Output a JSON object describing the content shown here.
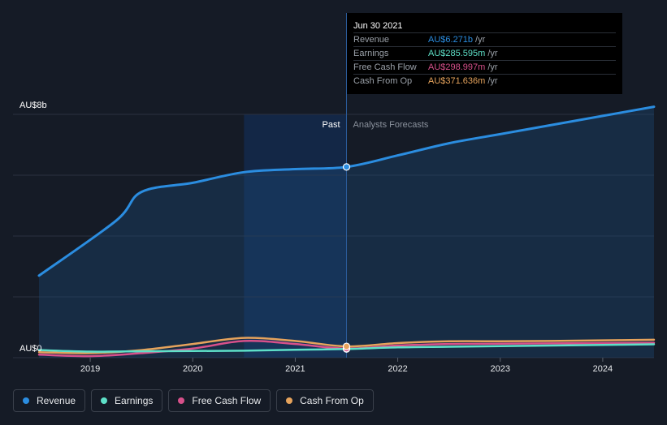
{
  "chart_data": {
    "type": "line",
    "y_axis_labels": [
      "AU$8b",
      "AU$0"
    ],
    "ylim": [
      0,
      8000
    ],
    "xlim": [
      2018.5,
      2024.5
    ],
    "x_ticks": [
      2019,
      2020,
      2021,
      2022,
      2023,
      2024
    ],
    "x_tick_labels": [
      "2019",
      "2020",
      "2021",
      "2022",
      "2023",
      "2024"
    ],
    "past_label": "Past",
    "forecast_label": "Analysts Forecasts",
    "divider_x": 2021.5,
    "shade_start_x": 2020.5,
    "grid": true,
    "series": [
      {
        "name": "Revenue",
        "color": "#2b8de0",
        "x": [
          2018.5,
          2019.25,
          2019.5,
          2020.0,
          2020.5,
          2021.0,
          2021.5,
          2022.0,
          2022.5,
          2023.0,
          2023.5,
          2024.0,
          2024.5
        ],
        "y": [
          2700,
          4500,
          5450,
          5750,
          6100,
          6200,
          6271,
          6650,
          7050,
          7350,
          7650,
          7950,
          8250
        ]
      },
      {
        "name": "Earnings",
        "color": "#5ee0c8",
        "x": [
          2018.5,
          2019.0,
          2019.5,
          2020.0,
          2020.5,
          2021.0,
          2021.5,
          2022.0,
          2022.5,
          2023.0,
          2023.5,
          2024.0,
          2024.5
        ],
        "y": [
          250,
          200,
          210,
          220,
          230,
          260,
          285.595,
          340,
          360,
          380,
          400,
          420,
          440
        ]
      },
      {
        "name": "Free Cash Flow",
        "color": "#d7508a",
        "x": [
          2018.5,
          2019.0,
          2019.5,
          2020.0,
          2020.5,
          2021.0,
          2021.5,
          2022.0,
          2022.5,
          2023.0,
          2023.5,
          2024.0,
          2024.5
        ],
        "y": [
          100,
          50,
          150,
          300,
          550,
          450,
          298.997,
          400,
          450,
          460,
          470,
          480,
          490
        ]
      },
      {
        "name": "Cash From Op",
        "color": "#e6a35c",
        "x": [
          2018.5,
          2019.0,
          2019.5,
          2020.0,
          2020.5,
          2021.0,
          2021.5,
          2022.0,
          2022.5,
          2023.0,
          2023.5,
          2024.0,
          2024.5
        ],
        "y": [
          180,
          150,
          250,
          450,
          650,
          550,
          371.636,
          480,
          540,
          540,
          550,
          570,
          590
        ]
      }
    ]
  },
  "tooltip": {
    "date": "Jun 30 2021",
    "unit": "/yr",
    "rows": [
      {
        "label": "Revenue",
        "value": "AU$6.271b",
        "color": "#2b8de0"
      },
      {
        "label": "Earnings",
        "value": "AU$285.595m",
        "color": "#5ee0c8"
      },
      {
        "label": "Free Cash Flow",
        "value": "AU$298.997m",
        "color": "#d7508a"
      },
      {
        "label": "Cash From Op",
        "value": "AU$371.636m",
        "color": "#e6a35c"
      }
    ]
  },
  "legend": [
    {
      "label": "Revenue",
      "color": "#2b8de0"
    },
    {
      "label": "Earnings",
      "color": "#5ee0c8"
    },
    {
      "label": "Free Cash Flow",
      "color": "#d7508a"
    },
    {
      "label": "Cash From Op",
      "color": "#e6a35c"
    }
  ]
}
